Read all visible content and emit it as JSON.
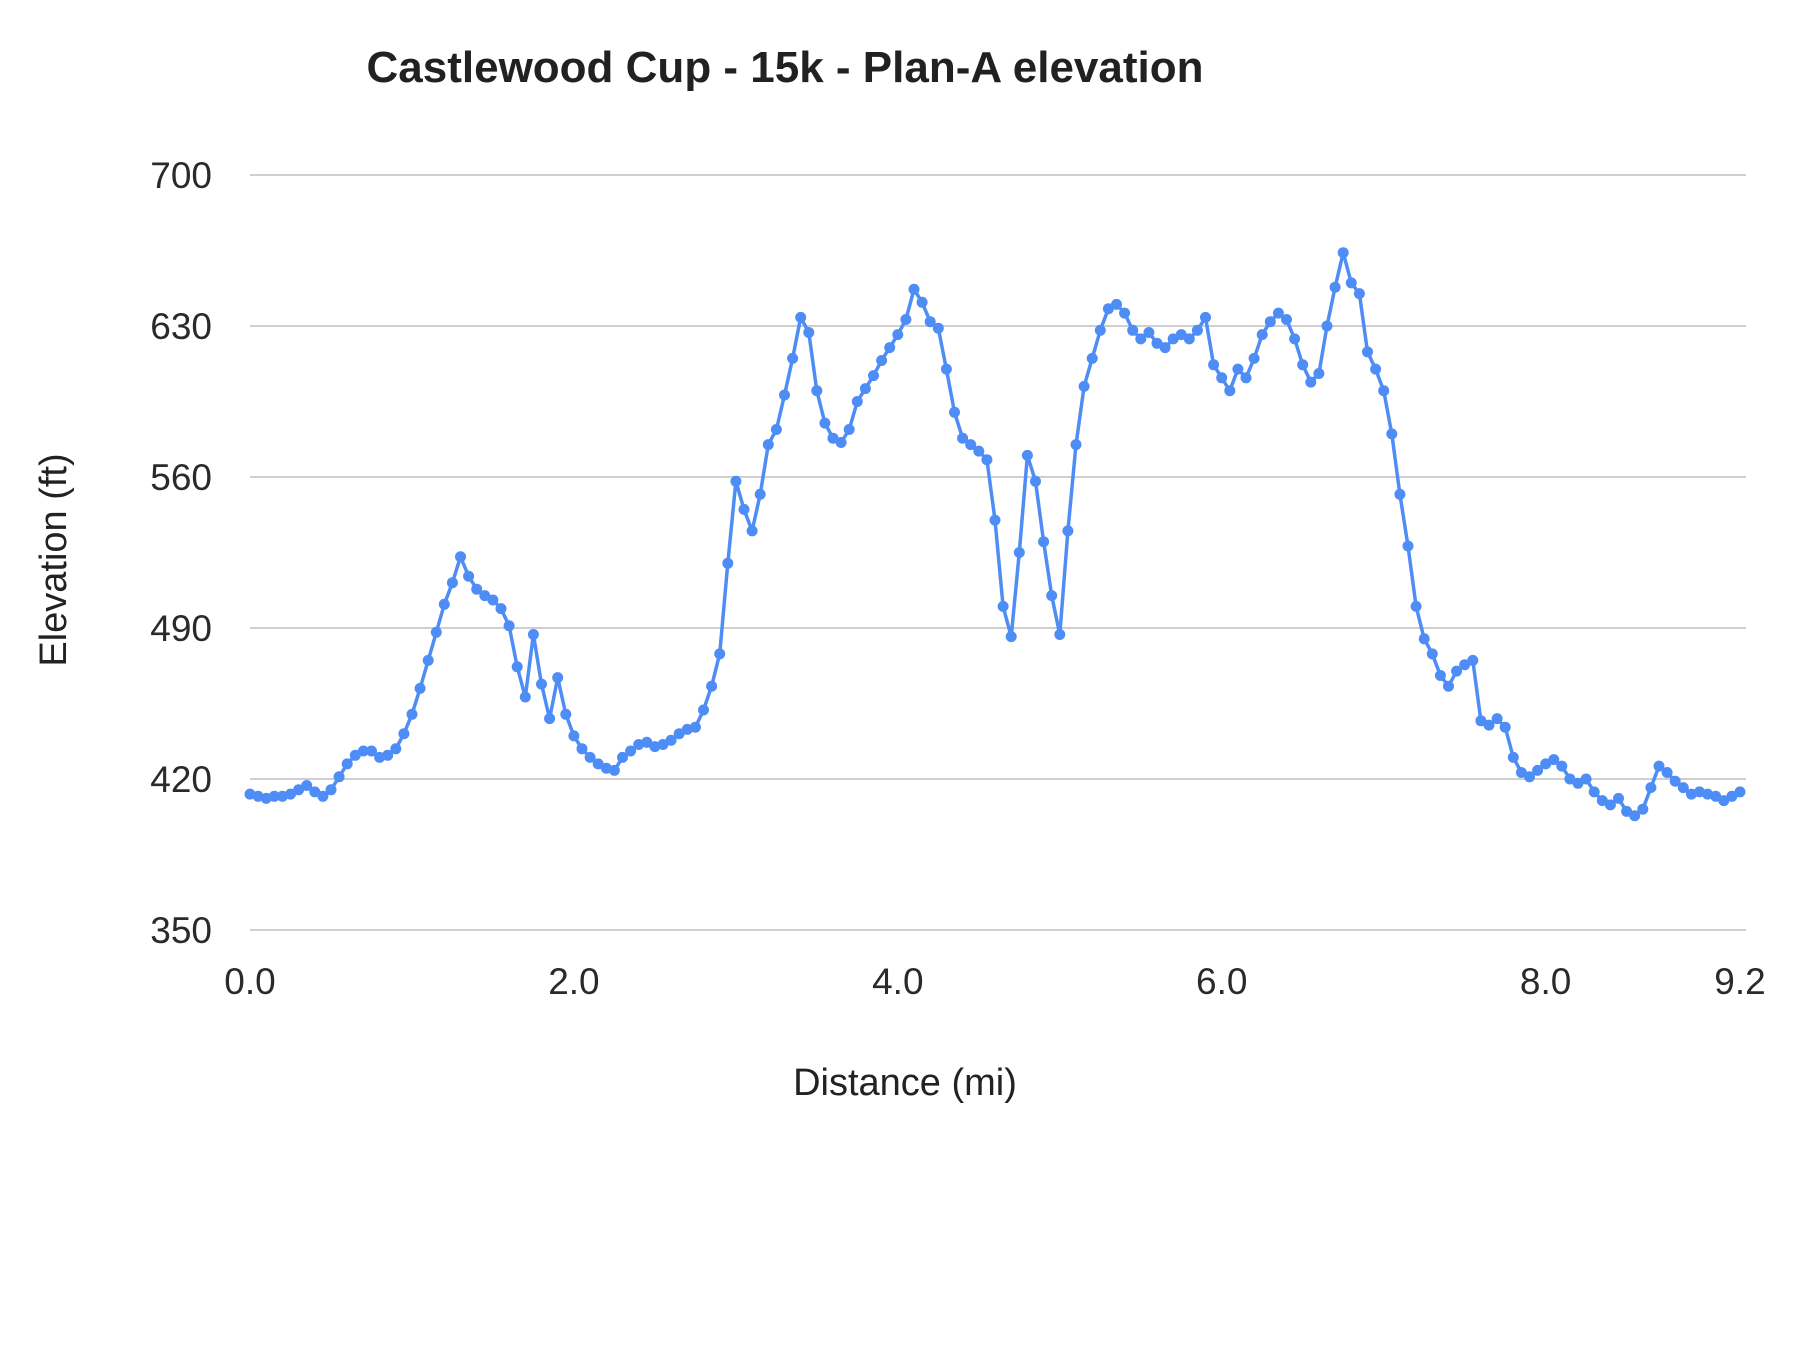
{
  "chart_data": {
    "type": "line",
    "title": "Castlewood Cup - 15k - Plan-A elevation",
    "xlabel": "Distance (mi)",
    "ylabel": "Elevation (ft)",
    "xlim": [
      0,
      9.2
    ],
    "ylim": [
      350,
      700
    ],
    "x_ticks": [
      0,
      2,
      4,
      6,
      8,
      9.2
    ],
    "x_tick_labels": [
      "0.0",
      "2.0",
      "4.0",
      "6.0",
      "8.0",
      "9.2"
    ],
    "y_ticks": [
      350,
      420,
      490,
      560,
      630,
      700
    ],
    "y_tick_labels": [
      "350",
      "420",
      "490",
      "560",
      "630",
      "700"
    ],
    "grid": "horizontal",
    "legend_position": "none",
    "line_color": "#4e8df6",
    "grid_color": "#cfcfcf",
    "marker": "circle",
    "series": [
      {
        "name": "Plan-A elevation",
        "x_start": 0.0,
        "x_step": 0.05,
        "y": [
          413,
          412,
          411,
          412,
          412,
          413,
          415,
          417,
          414,
          412,
          415,
          421,
          427,
          431,
          433,
          433,
          430,
          431,
          434,
          441,
          450,
          462,
          475,
          488,
          501,
          511,
          523,
          514,
          508,
          505,
          503,
          499,
          491,
          472,
          458,
          487,
          464,
          448,
          467,
          450,
          440,
          434,
          430,
          427,
          425,
          424,
          430,
          433,
          436,
          437,
          435,
          436,
          438,
          441,
          443,
          444,
          452,
          463,
          478,
          520,
          558,
          545,
          535,
          552,
          575,
          582,
          598,
          615,
          634,
          627,
          600,
          585,
          578,
          576,
          582,
          595,
          601,
          607,
          614,
          620,
          626,
          633,
          647,
          641,
          632,
          629,
          610,
          590,
          578,
          575,
          572,
          568,
          540,
          500,
          486,
          525,
          570,
          558,
          530,
          505,
          487,
          535,
          575,
          602,
          615,
          628,
          638,
          640,
          636,
          628,
          624,
          627,
          622,
          620,
          624,
          626,
          624,
          628,
          634,
          612,
          606,
          600,
          610,
          606,
          615,
          626,
          632,
          636,
          633,
          624,
          612,
          604,
          608,
          630,
          648,
          664,
          650,
          645,
          618,
          610,
          600,
          580,
          552,
          528,
          500,
          485,
          478,
          468,
          463,
          470,
          473,
          475,
          447,
          445,
          448,
          444,
          430,
          423,
          421,
          424,
          427,
          429,
          426,
          420,
          418,
          420,
          414,
          410,
          408,
          411,
          405,
          403,
          406,
          416,
          426,
          423,
          419,
          416,
          413,
          414,
          413,
          412,
          410,
          412,
          414
        ]
      }
    ]
  }
}
